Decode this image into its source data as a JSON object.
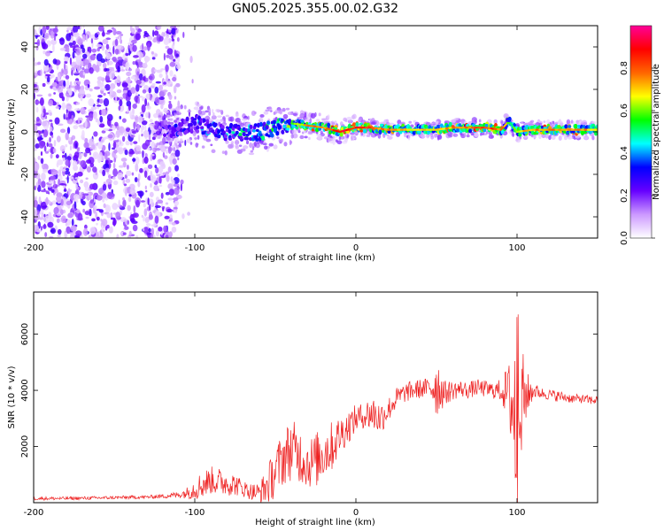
{
  "title": "GN05.2025.355.00.02.G32",
  "chart_data": [
    {
      "type": "heatmap",
      "name": "spectrogram",
      "xlabel": "Height of straight line (km)",
      "ylabel": "Frequency (Hz)",
      "xlim": [
        -200,
        150
      ],
      "ylim": [
        -50,
        50
      ],
      "xticks": [
        -200,
        -100,
        0,
        100
      ],
      "xtick_labels": [
        "-200",
        "-100",
        "0",
        "100"
      ],
      "yticks": [
        -40,
        -20,
        0,
        20,
        40
      ],
      "ytick_labels": [
        "-40",
        "-20",
        "0",
        "20",
        "40"
      ],
      "noise_region_x": [
        -200,
        -110
      ],
      "ridge": [
        {
          "x": -120,
          "f": 1,
          "amp": 0.3
        },
        {
          "x": -110,
          "f": 2,
          "amp": 0.33
        },
        {
          "x": -100,
          "f": 4,
          "amp": 0.38
        },
        {
          "x": -90,
          "f": 1,
          "amp": 0.42
        },
        {
          "x": -80,
          "f": 0,
          "amp": 0.45
        },
        {
          "x": -70,
          "f": -1,
          "amp": 0.5
        },
        {
          "x": -60,
          "f": 0,
          "amp": 0.52
        },
        {
          "x": -50,
          "f": 2,
          "amp": 0.55
        },
        {
          "x": -40,
          "f": 4,
          "amp": 0.6
        },
        {
          "x": -30,
          "f": 3,
          "amp": 0.75
        },
        {
          "x": -20,
          "f": 2,
          "amp": 0.8
        },
        {
          "x": -10,
          "f": 0,
          "amp": 0.9
        },
        {
          "x": 0,
          "f": 2,
          "amp": 0.9
        },
        {
          "x": 10,
          "f": 2,
          "amp": 0.8
        },
        {
          "x": 20,
          "f": 1,
          "amp": 0.75
        },
        {
          "x": 30,
          "f": 1,
          "amp": 0.7
        },
        {
          "x": 40,
          "f": 1,
          "amp": 0.7
        },
        {
          "x": 50,
          "f": 1,
          "amp": 0.72
        },
        {
          "x": 60,
          "f": 2,
          "amp": 0.75
        },
        {
          "x": 70,
          "f": 2,
          "amp": 0.8
        },
        {
          "x": 80,
          "f": 2,
          "amp": 0.85
        },
        {
          "x": 90,
          "f": 1,
          "amp": 0.8
        },
        {
          "x": 95,
          "f": 5,
          "amp": 0.5
        },
        {
          "x": 100,
          "f": 0,
          "amp": 0.7
        },
        {
          "x": 110,
          "f": 1,
          "amp": 0.75
        },
        {
          "x": 120,
          "f": 1,
          "amp": 0.8
        },
        {
          "x": 130,
          "f": 1,
          "amp": 0.75
        },
        {
          "x": 140,
          "f": 1,
          "amp": 0.75
        },
        {
          "x": 150,
          "f": 1,
          "amp": 0.7
        }
      ]
    },
    {
      "type": "colorbar",
      "name": "colorbar",
      "label": "Normalized spectral amplitude",
      "range": [
        0,
        1
      ],
      "ticks": [
        0.0,
        0.2,
        0.4,
        0.6,
        0.8
      ],
      "tick_labels": [
        "0.0",
        "0.2",
        "0.4",
        "0.6",
        "0.8"
      ],
      "colors": [
        "#ffffff",
        "#cc99ff",
        "#6600ff",
        "#0000ff",
        "#00ffff",
        "#00ff00",
        "#ffff00",
        "#ff6600",
        "#ff0000",
        "#ff0099"
      ]
    },
    {
      "type": "line",
      "name": "snr",
      "xlabel": "Height of straight line (km)",
      "ylabel": "SNR (10 * v/v)",
      "xlim": [
        -200,
        150
      ],
      "ylim": [
        0,
        7500
      ],
      "xticks": [
        -200,
        -100,
        0,
        100
      ],
      "xtick_labels": [
        "-200",
        "-100",
        "0",
        "100"
      ],
      "yticks": [
        2000,
        4000,
        6000
      ],
      "ytick_labels": [
        "2000",
        "4000",
        "6000"
      ],
      "color": "#ee2222",
      "series": [
        {
          "name": "SNR",
          "x": [
            -200,
            -190,
            -180,
            -170,
            -160,
            -150,
            -140,
            -130,
            -120,
            -110,
            -105,
            -100,
            -95,
            -90,
            -85,
            -80,
            -75,
            -70,
            -65,
            -60,
            -55,
            -50,
            -45,
            -40,
            -35,
            -30,
            -25,
            -20,
            -15,
            -10,
            -5,
            0,
            5,
            10,
            15,
            20,
            25,
            30,
            35,
            40,
            45,
            50,
            55,
            60,
            65,
            70,
            75,
            80,
            85,
            90,
            95,
            100,
            105,
            110,
            115,
            120,
            125,
            130,
            135,
            140,
            145,
            150
          ],
          "y": [
            150,
            150,
            150,
            160,
            170,
            180,
            190,
            200,
            230,
            280,
            350,
            500,
            650,
            800,
            750,
            700,
            650,
            500,
            400,
            350,
            600,
            1100,
            1600,
            1900,
            1700,
            1400,
            1500,
            1800,
            2000,
            2400,
            2700,
            3000,
            3100,
            3200,
            3000,
            3300,
            3700,
            3900,
            4000,
            4050,
            4100,
            4200,
            3900,
            4000,
            4050,
            4000,
            4100,
            4050,
            4000,
            4000,
            3900,
            3000,
            3800,
            4000,
            3900,
            3850,
            3800,
            3750,
            3700,
            3700,
            3650,
            3650
          ],
          "spread": [
            60,
            60,
            60,
            60,
            60,
            60,
            60,
            60,
            80,
            120,
            200,
            400,
            500,
            500,
            500,
            450,
            400,
            300,
            300,
            350,
            700,
            900,
            1000,
            1100,
            1000,
            900,
            1000,
            1000,
            900,
            700,
            600,
            500,
            450,
            700,
            600,
            450,
            400,
            350,
            350,
            350,
            350,
            1200,
            450,
            350,
            300,
            300,
            300,
            300,
            300,
            400,
            1100,
            4200,
            1000,
            300,
            200,
            200,
            200,
            180,
            160,
            160,
            160,
            160
          ]
        }
      ]
    }
  ]
}
